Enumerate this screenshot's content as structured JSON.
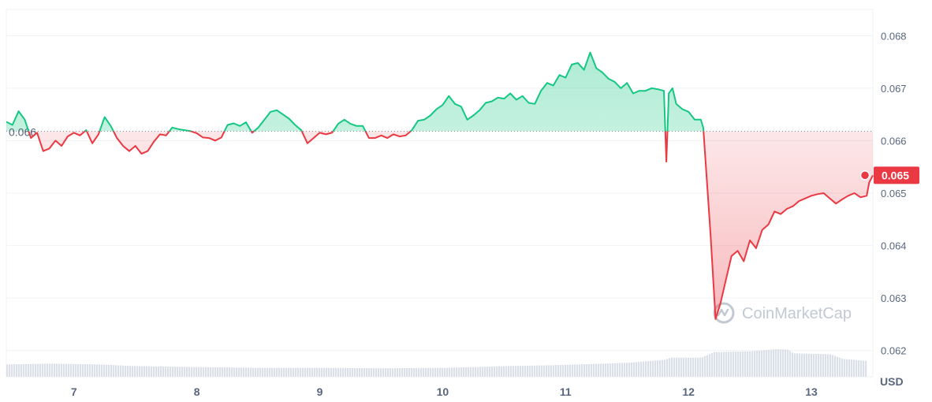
{
  "chart_data": {
    "type": "line",
    "x_labels": [
      "7",
      "8",
      "9",
      "10",
      "11",
      "12",
      "13"
    ],
    "x_range": [
      6.45,
      13.5
    ],
    "y_range": [
      0.0615,
      0.0685
    ],
    "y_ticks": [
      0.062,
      0.063,
      0.064,
      0.065,
      0.066,
      0.067,
      0.068
    ],
    "y_tick_labels": [
      "0.062",
      "0.063",
      "0.064",
      "0.065",
      "0.066",
      "0.067",
      "0.068"
    ],
    "currency": "USD",
    "reference_price": 0.06618,
    "reference_label": "0.066",
    "current_price": 0.06534,
    "current_price_label": "0.065",
    "price_above_color": "#16c784",
    "price_below_color": "#ea3943",
    "grid": true,
    "watermark": "CoinMarketCap",
    "series": [
      {
        "points": [
          [
            6.45,
            0.06636
          ],
          [
            6.5,
            0.0663
          ],
          [
            6.55,
            0.06656
          ],
          [
            6.6,
            0.0664
          ],
          [
            6.65,
            0.06605
          ],
          [
            6.7,
            0.06615
          ],
          [
            6.75,
            0.0658
          ],
          [
            6.8,
            0.06585
          ],
          [
            6.85,
            0.066
          ],
          [
            6.9,
            0.0659
          ],
          [
            6.95,
            0.06608
          ],
          [
            7.0,
            0.06615
          ],
          [
            7.05,
            0.0661
          ],
          [
            7.1,
            0.0662
          ],
          [
            7.15,
            0.06595
          ],
          [
            7.2,
            0.06612
          ],
          [
            7.25,
            0.06645
          ],
          [
            7.3,
            0.06628
          ],
          [
            7.35,
            0.06605
          ],
          [
            7.4,
            0.0659
          ],
          [
            7.45,
            0.0658
          ],
          [
            7.5,
            0.0659
          ],
          [
            7.55,
            0.06575
          ],
          [
            7.6,
            0.0658
          ],
          [
            7.65,
            0.06598
          ],
          [
            7.7,
            0.06612
          ],
          [
            7.75,
            0.0661
          ],
          [
            7.8,
            0.06625
          ],
          [
            7.85,
            0.06622
          ],
          [
            7.9,
            0.0662
          ],
          [
            7.95,
            0.06618
          ],
          [
            8.0,
            0.06614
          ],
          [
            8.05,
            0.06606
          ],
          [
            8.1,
            0.06605
          ],
          [
            8.15,
            0.066
          ],
          [
            8.2,
            0.06606
          ],
          [
            8.25,
            0.0663
          ],
          [
            8.3,
            0.06633
          ],
          [
            8.35,
            0.06628
          ],
          [
            8.4,
            0.06635
          ],
          [
            8.45,
            0.06615
          ],
          [
            8.5,
            0.06625
          ],
          [
            8.55,
            0.0664
          ],
          [
            8.6,
            0.06655
          ],
          [
            8.65,
            0.06658
          ],
          [
            8.7,
            0.0665
          ],
          [
            8.75,
            0.06642
          ],
          [
            8.8,
            0.0663
          ],
          [
            8.85,
            0.0662
          ],
          [
            8.9,
            0.06595
          ],
          [
            8.95,
            0.06605
          ],
          [
            9.0,
            0.06615
          ],
          [
            9.05,
            0.06612
          ],
          [
            9.1,
            0.06615
          ],
          [
            9.15,
            0.06632
          ],
          [
            9.2,
            0.0664
          ],
          [
            9.25,
            0.06632
          ],
          [
            9.3,
            0.06628
          ],
          [
            9.35,
            0.06628
          ],
          [
            9.4,
            0.06605
          ],
          [
            9.45,
            0.06605
          ],
          [
            9.5,
            0.0661
          ],
          [
            9.55,
            0.06605
          ],
          [
            9.6,
            0.06612
          ],
          [
            9.65,
            0.06608
          ],
          [
            9.7,
            0.0661
          ],
          [
            9.75,
            0.0662
          ],
          [
            9.8,
            0.06638
          ],
          [
            9.85,
            0.0664
          ],
          [
            9.9,
            0.06648
          ],
          [
            9.95,
            0.0666
          ],
          [
            10.0,
            0.06668
          ],
          [
            10.05,
            0.06685
          ],
          [
            10.1,
            0.0667
          ],
          [
            10.15,
            0.06665
          ],
          [
            10.2,
            0.0664
          ],
          [
            10.25,
            0.06648
          ],
          [
            10.3,
            0.06658
          ],
          [
            10.35,
            0.06672
          ],
          [
            10.4,
            0.06675
          ],
          [
            10.45,
            0.06682
          ],
          [
            10.5,
            0.0668
          ],
          [
            10.55,
            0.0669
          ],
          [
            10.6,
            0.06678
          ],
          [
            10.65,
            0.06685
          ],
          [
            10.7,
            0.06672
          ],
          [
            10.75,
            0.0667
          ],
          [
            10.8,
            0.06695
          ],
          [
            10.85,
            0.0671
          ],
          [
            10.9,
            0.06705
          ],
          [
            10.95,
            0.06725
          ],
          [
            11.0,
            0.0672
          ],
          [
            11.05,
            0.06745
          ],
          [
            11.1,
            0.06748
          ],
          [
            11.15,
            0.06735
          ],
          [
            11.2,
            0.06768
          ],
          [
            11.25,
            0.06738
          ],
          [
            11.3,
            0.0673
          ],
          [
            11.35,
            0.06718
          ],
          [
            11.4,
            0.06712
          ],
          [
            11.45,
            0.067
          ],
          [
            11.5,
            0.0671
          ],
          [
            11.55,
            0.0669
          ],
          [
            11.6,
            0.06695
          ],
          [
            11.65,
            0.06695
          ],
          [
            11.7,
            0.067
          ],
          [
            11.75,
            0.06698
          ],
          [
            11.8,
            0.06695
          ],
          [
            11.82,
            0.0656
          ],
          [
            11.84,
            0.0669
          ],
          [
            11.87,
            0.067
          ],
          [
            11.9,
            0.0667
          ],
          [
            11.95,
            0.0666
          ],
          [
            12.0,
            0.06655
          ],
          [
            12.05,
            0.0664
          ],
          [
            12.1,
            0.0664
          ],
          [
            12.12,
            0.06625
          ],
          [
            12.18,
            0.0642
          ],
          [
            12.22,
            0.0626
          ],
          [
            12.26,
            0.0629
          ],
          [
            12.3,
            0.0633
          ],
          [
            12.35,
            0.0638
          ],
          [
            12.4,
            0.0639
          ],
          [
            12.45,
            0.0637
          ],
          [
            12.5,
            0.0641
          ],
          [
            12.55,
            0.06395
          ],
          [
            12.6,
            0.0643
          ],
          [
            12.65,
            0.0644
          ],
          [
            12.7,
            0.06465
          ],
          [
            12.75,
            0.0646
          ],
          [
            12.8,
            0.0647
          ],
          [
            12.85,
            0.06475
          ],
          [
            12.9,
            0.06485
          ],
          [
            12.95,
            0.0649
          ],
          [
            13.0,
            0.06495
          ],
          [
            13.05,
            0.06498
          ],
          [
            13.1,
            0.065
          ],
          [
            13.15,
            0.0649
          ],
          [
            13.2,
            0.0648
          ],
          [
            13.25,
            0.06488
          ],
          [
            13.3,
            0.06495
          ],
          [
            13.35,
            0.065
          ],
          [
            13.4,
            0.06492
          ],
          [
            13.45,
            0.06495
          ],
          [
            13.47,
            0.0652
          ],
          [
            13.5,
            0.06534
          ]
        ]
      }
    ],
    "volume": {
      "points": [
        [
          6.45,
          0.29
        ],
        [
          6.8,
          0.31
        ],
        [
          7.2,
          0.29
        ],
        [
          7.5,
          0.25
        ],
        [
          8.0,
          0.23
        ],
        [
          8.5,
          0.21
        ],
        [
          9.0,
          0.21
        ],
        [
          9.5,
          0.2
        ],
        [
          10.0,
          0.21
        ],
        [
          10.5,
          0.25
        ],
        [
          11.0,
          0.28
        ],
        [
          11.5,
          0.33
        ],
        [
          11.8,
          0.4
        ],
        [
          11.85,
          0.45
        ],
        [
          12.1,
          0.45
        ],
        [
          12.2,
          0.58
        ],
        [
          12.5,
          0.6
        ],
        [
          12.7,
          0.65
        ],
        [
          12.8,
          0.64
        ],
        [
          12.85,
          0.55
        ],
        [
          13.15,
          0.53
        ],
        [
          13.25,
          0.42
        ],
        [
          13.5,
          0.36
        ]
      ]
    }
  }
}
